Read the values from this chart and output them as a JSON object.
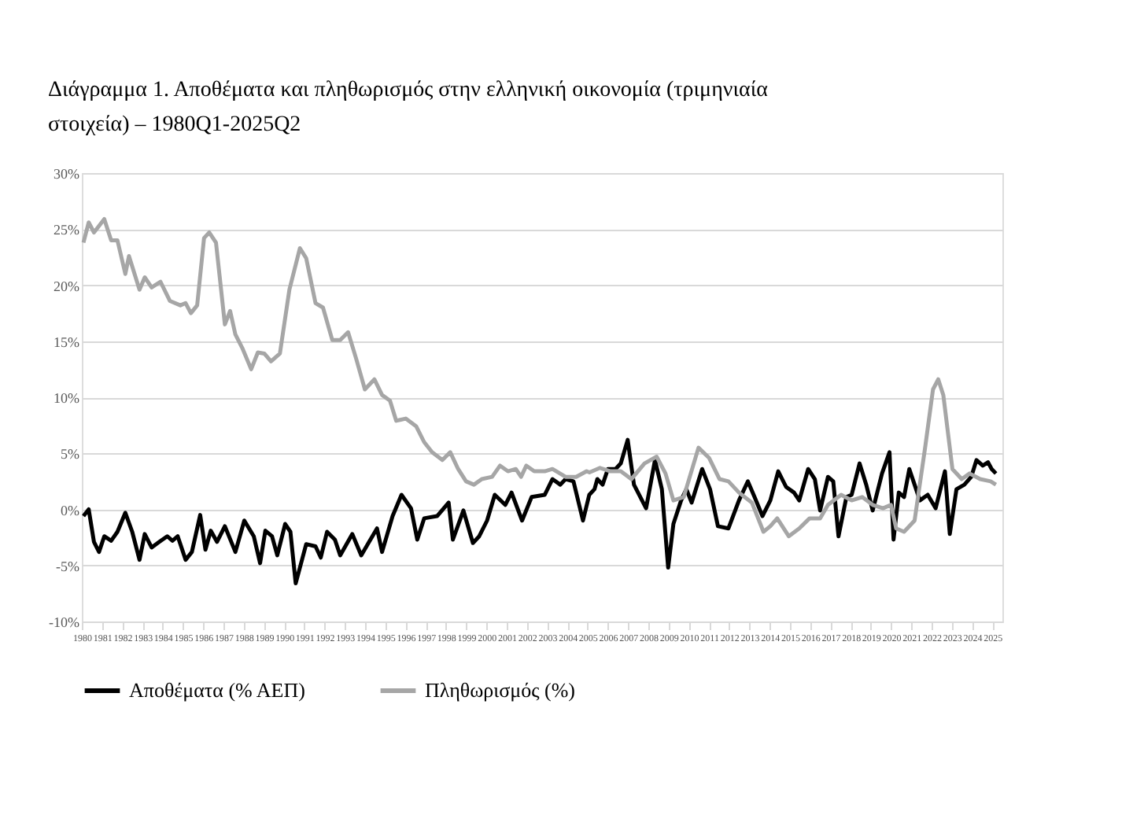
{
  "chart_data": {
    "type": "line",
    "title": "Διάγραμμα 1. Αποθέματα και πληθωρισμός στην ελληνική οικονομία (τριμηνιαία στοιχεία) – 1980Q1-2025Q2",
    "series": [
      {
        "name": "Αποθέματα (% ΑΕΠ)",
        "color": "#000000",
        "x": [
          1980.08,
          1980.34,
          1980.6,
          1980.85,
          1981.11,
          1981.45,
          1981.76,
          1982.15,
          1982.49,
          1982.85,
          1983.11,
          1983.45,
          1983.83,
          1984.22,
          1984.48,
          1984.74,
          1985.13,
          1985.44,
          1985.85,
          1986.11,
          1986.37,
          1986.68,
          1987.07,
          1987.59,
          1988.03,
          1988.5,
          1988.81,
          1989.07,
          1989.4,
          1989.66,
          1990.05,
          1990.31,
          1990.57,
          1991.09,
          1991.55,
          1991.81,
          1992.12,
          1992.51,
          1992.77,
          1993.37,
          1993.81,
          1994.2,
          1994.59,
          1994.84,
          1995.36,
          1995.8,
          1996.27,
          1996.58,
          1996.92,
          1997.56,
          1998.13,
          1998.34,
          1998.86,
          1999.33,
          1999.64,
          2000.03,
          2000.41,
          2000.93,
          2001.24,
          2001.76,
          2002.23,
          2002.88,
          2003.26,
          2003.65,
          2003.91,
          2004.3,
          2004.77,
          2005.08,
          2005.34,
          2005.48,
          2005.74,
          2006.0,
          2006.38,
          2006.64,
          2006.98,
          2007.29,
          2007.89,
          2008.33,
          2008.67,
          2008.98,
          2009.24,
          2009.62,
          2009.88,
          2010.14,
          2010.66,
          2011.05,
          2011.44,
          2011.96,
          2012.48,
          2012.92,
          2013.25,
          2013.64,
          2014.03,
          2014.42,
          2014.81,
          2015.2,
          2015.46,
          2015.9,
          2016.23,
          2016.49,
          2016.88,
          2017.14,
          2017.4,
          2017.79,
          2018.05,
          2018.44,
          2018.77,
          2019.09,
          2019.55,
          2019.92,
          2020.12,
          2020.38,
          2020.64,
          2020.9,
          2021.16,
          2021.42,
          2021.81,
          2022.2,
          2022.66,
          2022.9,
          2023.23,
          2023.62,
          2023.96,
          2024.22,
          2024.53,
          2024.79,
          2024.97,
          2025.18
        ],
        "values": [
          -0.6,
          0.0,
          -2.9,
          -3.8,
          -2.4,
          -2.8,
          -2.0,
          -0.3,
          -2.0,
          -4.5,
          -2.2,
          -3.4,
          -2.9,
          -2.4,
          -2.8,
          -2.4,
          -4.5,
          -3.8,
          -0.5,
          -3.6,
          -1.9,
          -2.9,
          -1.5,
          -3.8,
          -1.0,
          -2.4,
          -4.8,
          -1.9,
          -2.4,
          -4.1,
          -1.3,
          -2.0,
          -6.6,
          -3.1,
          -3.3,
          -4.3,
          -2.0,
          -2.7,
          -4.1,
          -2.2,
          -4.1,
          -2.9,
          -1.7,
          -3.8,
          -0.6,
          1.3,
          0.1,
          -2.7,
          -0.8,
          -0.6,
          0.6,
          -2.7,
          -0.1,
          -3.0,
          -2.4,
          -1.0,
          1.3,
          0.4,
          1.5,
          -1.0,
          1.1,
          1.3,
          2.7,
          2.2,
          2.7,
          2.5,
          -1.0,
          1.3,
          1.8,
          2.7,
          2.2,
          3.6,
          3.6,
          4.1,
          6.2,
          2.2,
          0.1,
          4.4,
          1.8,
          -5.2,
          -1.3,
          0.8,
          1.8,
          0.6,
          3.6,
          1.8,
          -1.5,
          -1.7,
          0.8,
          2.5,
          1.1,
          -0.6,
          0.8,
          3.4,
          2.0,
          1.5,
          0.8,
          3.6,
          2.7,
          -0.1,
          2.9,
          2.5,
          -2.4,
          1.1,
          1.3,
          4.1,
          2.2,
          -0.1,
          3.2,
          5.1,
          -2.7,
          1.5,
          1.1,
          3.6,
          2.2,
          0.8,
          1.3,
          0.1,
          3.4,
          -2.2,
          1.8,
          2.2,
          2.9,
          4.4,
          3.9,
          4.2,
          3.6,
          3.2
        ]
      },
      {
        "name": "Πληθωρισμός (%)",
        "color": "#a6a6a6",
        "x": [
          1980.08,
          1980.34,
          1980.6,
          1981.11,
          1981.45,
          1981.76,
          1982.15,
          1982.33,
          1982.85,
          1983.11,
          1983.45,
          1983.89,
          1984.35,
          1984.87,
          1985.13,
          1985.39,
          1985.7,
          1986.04,
          1986.3,
          1986.63,
          1987.07,
          1987.33,
          1987.59,
          1987.93,
          1988.37,
          1988.7,
          1989.02,
          1989.35,
          1989.79,
          1990.26,
          1990.78,
          1991.09,
          1991.55,
          1991.92,
          1992.38,
          1992.77,
          1993.16,
          1993.55,
          1993.99,
          1994.46,
          1994.84,
          1995.23,
          1995.54,
          1996.01,
          1996.53,
          1996.92,
          1997.31,
          1997.82,
          1998.21,
          1998.6,
          1998.99,
          1999.38,
          1999.77,
          2000.28,
          2000.67,
          2001.06,
          2001.45,
          2001.71,
          2001.97,
          2002.36,
          2002.88,
          2003.26,
          2003.91,
          2004.43,
          2004.95,
          2005.09,
          2005.61,
          2006.13,
          2006.64,
          2007.16,
          2007.81,
          2008.41,
          2008.85,
          2009.24,
          2009.75,
          2010.48,
          2011.0,
          2011.52,
          2011.96,
          2012.48,
          2013.12,
          2013.69,
          2014.03,
          2014.37,
          2014.94,
          2015.46,
          2015.97,
          2016.49,
          2016.88,
          2017.53,
          2018.05,
          2018.57,
          2019.09,
          2019.6,
          2019.99,
          2020.25,
          2020.64,
          2021.16,
          2021.68,
          2022.07,
          2022.33,
          2022.58,
          2023.03,
          2023.49,
          2023.88,
          2024.4,
          2024.92,
          2025.18
        ],
        "values": [
          23.8,
          25.6,
          24.7,
          25.9,
          24.0,
          24.0,
          21.0,
          22.6,
          19.6,
          20.7,
          19.8,
          20.3,
          18.6,
          18.2,
          18.4,
          17.5,
          18.2,
          24.2,
          24.7,
          23.8,
          16.5,
          17.7,
          15.6,
          14.4,
          12.5,
          14.0,
          13.9,
          13.2,
          13.9,
          19.6,
          23.3,
          22.4,
          18.4,
          18.0,
          15.1,
          15.1,
          15.8,
          13.5,
          10.7,
          11.6,
          10.2,
          9.7,
          7.9,
          8.1,
          7.4,
          6.0,
          5.1,
          4.4,
          5.1,
          3.6,
          2.5,
          2.2,
          2.7,
          2.9,
          3.9,
          3.4,
          3.6,
          2.9,
          3.9,
          3.4,
          3.4,
          3.6,
          2.9,
          2.9,
          3.4,
          3.3,
          3.7,
          3.4,
          3.4,
          2.7,
          4.1,
          4.7,
          3.2,
          0.8,
          1.1,
          5.5,
          4.6,
          2.7,
          2.5,
          1.5,
          0.6,
          -2.0,
          -1.5,
          -0.8,
          -2.4,
          -1.7,
          -0.8,
          -0.8,
          0.4,
          1.3,
          0.8,
          1.1,
          0.4,
          0.1,
          0.4,
          -1.7,
          -2.0,
          -1.0,
          5.5,
          10.7,
          11.6,
          10.2,
          3.6,
          2.7,
          3.2,
          2.7,
          2.5,
          2.2
        ]
      }
    ],
    "xlim": [
      1980,
      2025.5
    ],
    "xticks": [
      1980,
      1981,
      1982,
      1983,
      1984,
      1985,
      1986,
      1987,
      1988,
      1989,
      1990,
      1991,
      1992,
      1993,
      1994,
      1995,
      1996,
      1997,
      1998,
      1999,
      2000,
      2001,
      2002,
      2003,
      2004,
      2005,
      2006,
      2007,
      2008,
      2009,
      2010,
      2011,
      2012,
      2013,
      2014,
      2015,
      2016,
      2017,
      2018,
      2019,
      2020,
      2021,
      2022,
      2023,
      2024,
      2025
    ],
    "ylim": [
      -10,
      30
    ],
    "yticks": [
      {
        "value": -10,
        "label": "-10%"
      },
      {
        "value": -5,
        "label": "-5%"
      },
      {
        "value": 0,
        "label": "0%"
      },
      {
        "value": 5,
        "label": "5%"
      },
      {
        "value": 10,
        "label": "10%"
      },
      {
        "value": 15,
        "label": "15%"
      },
      {
        "value": 20,
        "label": "20%"
      },
      {
        "value": 25,
        "label": "25%"
      },
      {
        "value": 30,
        "label": "30%"
      }
    ],
    "grid": "y",
    "legend": "bottom",
    "marker": "none",
    "line_style": "solid"
  }
}
